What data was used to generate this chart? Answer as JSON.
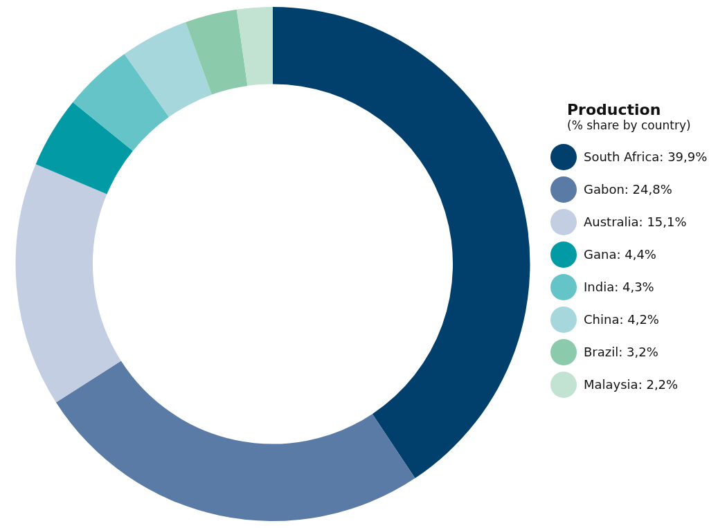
{
  "chart_data": {
    "type": "donut",
    "legend_title": "Production",
    "subtitle": "(% share by country)",
    "legend": "right",
    "categories": [
      "South Africa",
      "Gabon",
      "Australia",
      "Gana",
      "India",
      "China",
      "Brazil",
      "Malaysia"
    ],
    "values": [
      39.9,
      24.8,
      15.1,
      4.4,
      4.3,
      4.2,
      3.2,
      2.2
    ],
    "value_labels": [
      "39,9%",
      "24,8%",
      "15,1%",
      "4,4%",
      "4,3%",
      "4,2%",
      "3,2%",
      "2,2%"
    ],
    "colors": [
      "#01406c",
      "#5a7ba5",
      "#c3cee2",
      "#029ba5",
      "#64c4c8",
      "#a5d7dc",
      "#8bcaaa",
      "#c2e3d2"
    ]
  }
}
